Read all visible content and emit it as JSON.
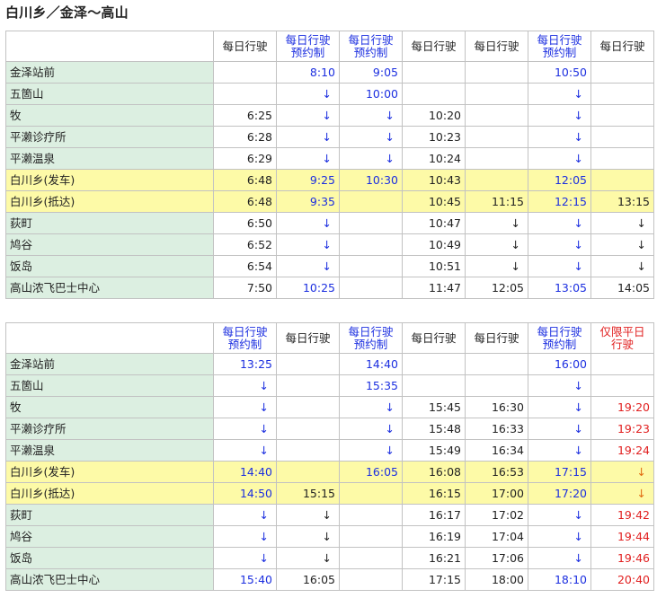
{
  "title": "白川乡／金泽～高山",
  "colors": {
    "regular": "#222222",
    "reservation": "#1c2fe0",
    "weekday_only": "#e12020",
    "arrow_weekday": "#e06a10",
    "stop_bg": "#dcefe1",
    "highlight_bg": "#fdfaa7"
  },
  "tables": [
    {
      "headers": [
        {
          "lines": [
            "每日行驶"
          ],
          "color": "black"
        },
        {
          "lines": [
            "每日行驶",
            "预约制"
          ],
          "color": "blue"
        },
        {
          "lines": [
            "每日行驶",
            "预约制"
          ],
          "color": "blue"
        },
        {
          "lines": [
            "每日行驶"
          ],
          "color": "black"
        },
        {
          "lines": [
            "每日行驶"
          ],
          "color": "black"
        },
        {
          "lines": [
            "每日行驶",
            "预约制"
          ],
          "color": "blue"
        },
        {
          "lines": [
            "每日行驶"
          ],
          "color": "black"
        }
      ],
      "rows": [
        {
          "stop": "金泽站前",
          "highlight": false,
          "cells": [
            "",
            "8:10",
            "9:05",
            "",
            "",
            "10:50",
            ""
          ]
        },
        {
          "stop": "五箇山",
          "highlight": false,
          "cells": [
            "",
            "↓",
            "10:00",
            "",
            "",
            "↓",
            ""
          ]
        },
        {
          "stop": "牧",
          "highlight": false,
          "cells": [
            "6:25",
            "↓",
            "↓",
            "10:20",
            "",
            "↓",
            ""
          ]
        },
        {
          "stop": "平濑诊疗所",
          "highlight": false,
          "cells": [
            "6:28",
            "↓",
            "↓",
            "10:23",
            "",
            "↓",
            ""
          ]
        },
        {
          "stop": "平濑温泉",
          "highlight": false,
          "cells": [
            "6:29",
            "↓",
            "↓",
            "10:24",
            "",
            "↓",
            ""
          ]
        },
        {
          "stop": "白川乡(发车)",
          "highlight": true,
          "cells": [
            "6:48",
            "9:25",
            "10:30",
            "10:43",
            "",
            "12:05",
            ""
          ]
        },
        {
          "stop": "白川乡(抵达)",
          "highlight": true,
          "cells": [
            "6:48",
            "9:35",
            "",
            "10:45",
            "11:15",
            "12:15",
            "13:15"
          ]
        },
        {
          "stop": "荻町",
          "highlight": false,
          "cells": [
            "6:50",
            "↓",
            "",
            "10:47",
            "↓",
            "↓",
            "↓"
          ]
        },
        {
          "stop": "鸠谷",
          "highlight": false,
          "cells": [
            "6:52",
            "↓",
            "",
            "10:49",
            "↓",
            "↓",
            "↓"
          ]
        },
        {
          "stop": "饭岛",
          "highlight": false,
          "cells": [
            "6:54",
            "↓",
            "",
            "10:51",
            "↓",
            "↓",
            "↓"
          ]
        },
        {
          "stop": "高山浓飞巴士中心",
          "highlight": false,
          "cells": [
            "7:50",
            "10:25",
            "",
            "11:47",
            "12:05",
            "13:05",
            "14:05"
          ]
        }
      ]
    },
    {
      "headers": [
        {
          "lines": [
            "每日行驶",
            "预约制"
          ],
          "color": "blue"
        },
        {
          "lines": [
            "每日行驶"
          ],
          "color": "black"
        },
        {
          "lines": [
            "每日行驶",
            "预约制"
          ],
          "color": "blue"
        },
        {
          "lines": [
            "每日行驶"
          ],
          "color": "black"
        },
        {
          "lines": [
            "每日行驶"
          ],
          "color": "black"
        },
        {
          "lines": [
            "每日行驶",
            "预约制"
          ],
          "color": "blue"
        },
        {
          "lines": [
            "仅限平日",
            "行驶"
          ],
          "color": "red"
        }
      ],
      "rows": [
        {
          "stop": "金泽站前",
          "highlight": false,
          "cells": [
            "13:25",
            "",
            "14:40",
            "",
            "",
            "16:00",
            ""
          ]
        },
        {
          "stop": "五箇山",
          "highlight": false,
          "cells": [
            "↓",
            "",
            "15:35",
            "",
            "",
            "↓",
            ""
          ]
        },
        {
          "stop": "牧",
          "highlight": false,
          "cells": [
            "↓",
            "",
            "↓",
            "15:45",
            "16:30",
            "↓",
            "19:20"
          ]
        },
        {
          "stop": "平濑诊疗所",
          "highlight": false,
          "cells": [
            "↓",
            "",
            "↓",
            "15:48",
            "16:33",
            "↓",
            "19:23"
          ]
        },
        {
          "stop": "平濑温泉",
          "highlight": false,
          "cells": [
            "↓",
            "",
            "↓",
            "15:49",
            "16:34",
            "↓",
            "19:24"
          ]
        },
        {
          "stop": "白川乡(发车)",
          "highlight": true,
          "cells": [
            "14:40",
            "",
            "16:05",
            "16:08",
            "16:53",
            "17:15",
            "↓"
          ]
        },
        {
          "stop": "白川乡(抵达)",
          "highlight": true,
          "cells": [
            "14:50",
            "15:15",
            "",
            "16:15",
            "17:00",
            "17:20",
            "↓"
          ]
        },
        {
          "stop": "荻町",
          "highlight": false,
          "cells": [
            "↓",
            "↓",
            "",
            "16:17",
            "17:02",
            "↓",
            "19:42"
          ]
        },
        {
          "stop": "鸠谷",
          "highlight": false,
          "cells": [
            "↓",
            "↓",
            "",
            "16:19",
            "17:04",
            "↓",
            "19:44"
          ]
        },
        {
          "stop": "饭岛",
          "highlight": false,
          "cells": [
            "↓",
            "↓",
            "",
            "16:21",
            "17:06",
            "↓",
            "19:46"
          ]
        },
        {
          "stop": "高山浓飞巴士中心",
          "highlight": false,
          "cells": [
            "15:40",
            "16:05",
            "",
            "17:15",
            "18:00",
            "18:10",
            "20:40"
          ]
        }
      ]
    }
  ]
}
